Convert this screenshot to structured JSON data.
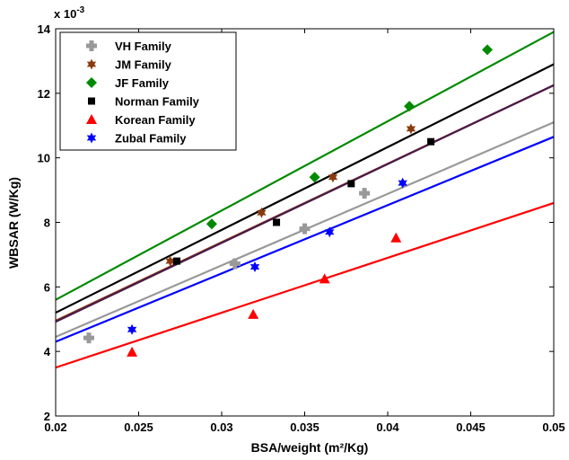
{
  "chart_data": {
    "type": "scatter",
    "title": "",
    "xlabel": "BSA/weight (m²/Kg)",
    "ylabel": "WBSAR (W/Kg)",
    "y_exponent_label": "x 10",
    "y_exponent_power": "-3",
    "xlim": [
      0.02,
      0.05
    ],
    "ylim": [
      2,
      14
    ],
    "x_ticks": [
      0.02,
      0.025,
      0.03,
      0.035,
      0.04,
      0.045,
      0.05
    ],
    "x_tick_labels": [
      "0.02",
      "0.025",
      "0.03",
      "0.035",
      "0.04",
      "0.045",
      "0.05"
    ],
    "y_ticks": [
      2,
      4,
      6,
      8,
      10,
      12,
      14
    ],
    "y_tick_labels": [
      "2",
      "4",
      "6",
      "8",
      "10",
      "12",
      "14"
    ],
    "grid": false,
    "legend_position": "top-left",
    "series": [
      {
        "name": "VH Family",
        "color": "#999999",
        "marker": "plus",
        "points": [
          [
            0.022,
            4.42
          ],
          [
            0.0308,
            6.72
          ],
          [
            0.035,
            7.8
          ],
          [
            0.0386,
            8.9
          ]
        ],
        "fit": [
          [
            0.02,
            4.45
          ],
          [
            0.05,
            11.1
          ]
        ]
      },
      {
        "name": "JM Family",
        "color": "#8b3a0e",
        "marker": "hexagram",
        "points": [
          [
            0.0269,
            6.8
          ],
          [
            0.0324,
            8.3
          ],
          [
            0.0367,
            9.4
          ],
          [
            0.0414,
            10.9
          ]
        ],
        "fit": [
          [
            0.02,
            4.95
          ],
          [
            0.05,
            12.25
          ]
        ]
      },
      {
        "name": "JF Family",
        "color": "#008a00",
        "marker": "diamond",
        "points": [
          [
            0.0294,
            7.95
          ],
          [
            0.0356,
            9.4
          ],
          [
            0.0413,
            11.6
          ],
          [
            0.046,
            13.35
          ]
        ],
        "fit": [
          [
            0.02,
            5.6
          ],
          [
            0.05,
            13.9
          ]
        ]
      },
      {
        "name": "Norman Family",
        "color": "#000000",
        "marker": "square",
        "points": [
          [
            0.0273,
            6.8
          ],
          [
            0.0333,
            8.0
          ],
          [
            0.0378,
            9.2
          ],
          [
            0.0426,
            10.5
          ]
        ],
        "fit": [
          [
            0.02,
            5.2
          ],
          [
            0.05,
            12.9
          ]
        ]
      },
      {
        "name": "Korean Family",
        "color": "#ff0000",
        "marker": "triangle",
        "points": [
          [
            0.0246,
            3.98
          ],
          [
            0.0319,
            5.15
          ],
          [
            0.0362,
            6.25
          ],
          [
            0.0405,
            7.52
          ]
        ],
        "fit": [
          [
            0.02,
            3.5
          ],
          [
            0.05,
            8.6
          ]
        ]
      },
      {
        "name": "Zubal Family",
        "color": "#0000ff",
        "marker": "hexagram",
        "points": [
          [
            0.0246,
            4.68
          ],
          [
            0.032,
            6.62
          ],
          [
            0.0365,
            7.7
          ],
          [
            0.0409,
            9.22
          ]
        ],
        "fit": [
          [
            0.02,
            4.3
          ],
          [
            0.05,
            10.65
          ]
        ]
      }
    ],
    "extra_fit_line": {
      "color": "#4a1a4a",
      "fit": [
        [
          0.02,
          4.92
        ],
        [
          0.05,
          12.25
        ]
      ]
    }
  }
}
